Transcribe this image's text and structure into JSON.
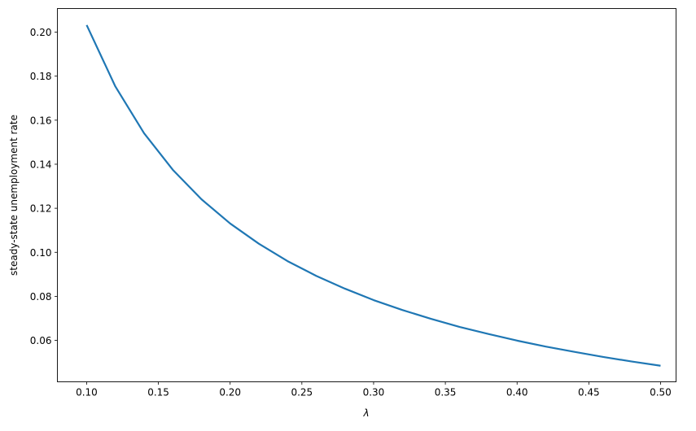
{
  "chart_data": {
    "type": "line",
    "title": "",
    "xlabel": "λ",
    "ylabel": "steady-state unemployment rate",
    "xlim": [
      0.0796,
      0.5108
    ],
    "ylim": [
      0.0412,
      0.2107
    ],
    "grid": false,
    "xticks": [
      "0.10",
      "0.15",
      "0.20",
      "0.25",
      "0.30",
      "0.35",
      "0.40",
      "0.45",
      "0.50"
    ],
    "yticks": [
      "0.06",
      "0.08",
      "0.10",
      "0.12",
      "0.14",
      "0.16",
      "0.18",
      "0.20"
    ],
    "series": [
      {
        "color": "#1f77b4",
        "x": [
          0.1,
          0.12,
          0.14,
          0.16,
          0.18,
          0.2,
          0.22,
          0.24,
          0.26,
          0.28,
          0.3,
          0.32,
          0.34,
          0.36,
          0.38,
          0.4,
          0.42,
          0.44,
          0.46,
          0.48,
          0.5
        ],
        "y": [
          0.2032,
          0.1753,
          0.1541,
          0.1375,
          0.1241,
          0.1131,
          0.1039,
          0.096,
          0.0893,
          0.0835,
          0.0783,
          0.0738,
          0.0698,
          0.0661,
          0.0629,
          0.0599,
          0.0572,
          0.0548,
          0.0525,
          0.0504,
          0.0485
        ]
      }
    ]
  }
}
